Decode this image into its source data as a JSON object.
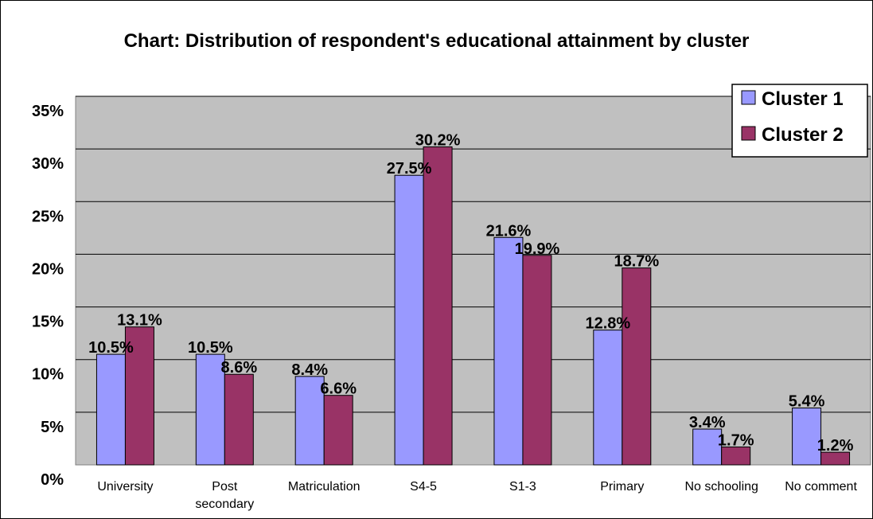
{
  "chart_data": {
    "type": "bar",
    "title": "Chart: Distribution of respondent's educational attainment by cluster",
    "categories": [
      [
        "University"
      ],
      [
        "Post",
        "secondary"
      ],
      [
        "Matriculation"
      ],
      [
        "S4-5"
      ],
      [
        "S1-3"
      ],
      [
        "Primary"
      ],
      [
        "No schooling"
      ],
      [
        "No comment"
      ]
    ],
    "series": [
      {
        "name": "Cluster 1",
        "color": "#9999ff",
        "values": [
          10.5,
          10.5,
          8.4,
          27.5,
          21.6,
          12.8,
          3.4,
          5.4
        ],
        "labels": [
          "10.5%",
          "10.5%",
          "8.4%",
          "27.5%",
          "21.6%",
          "12.8%",
          "3.4%",
          "5.4%"
        ]
      },
      {
        "name": "Cluster 2",
        "color": "#993366",
        "values": [
          13.1,
          8.6,
          6.6,
          30.2,
          19.9,
          18.7,
          1.7,
          1.2
        ],
        "labels": [
          "13.1%",
          "8.6%",
          "6.6%",
          "30.2%",
          "19.9%",
          "18.7%",
          "1.7%",
          "1.2%"
        ]
      }
    ],
    "ylim": [
      0,
      35
    ],
    "yticks": [
      "0%",
      "5%",
      "10%",
      "15%",
      "20%",
      "25%",
      "30%",
      "35%"
    ],
    "xlabel": "",
    "ylabel": "",
    "grid": true,
    "plot_background": "#c0c0c0",
    "legend_position": "top-right"
  }
}
